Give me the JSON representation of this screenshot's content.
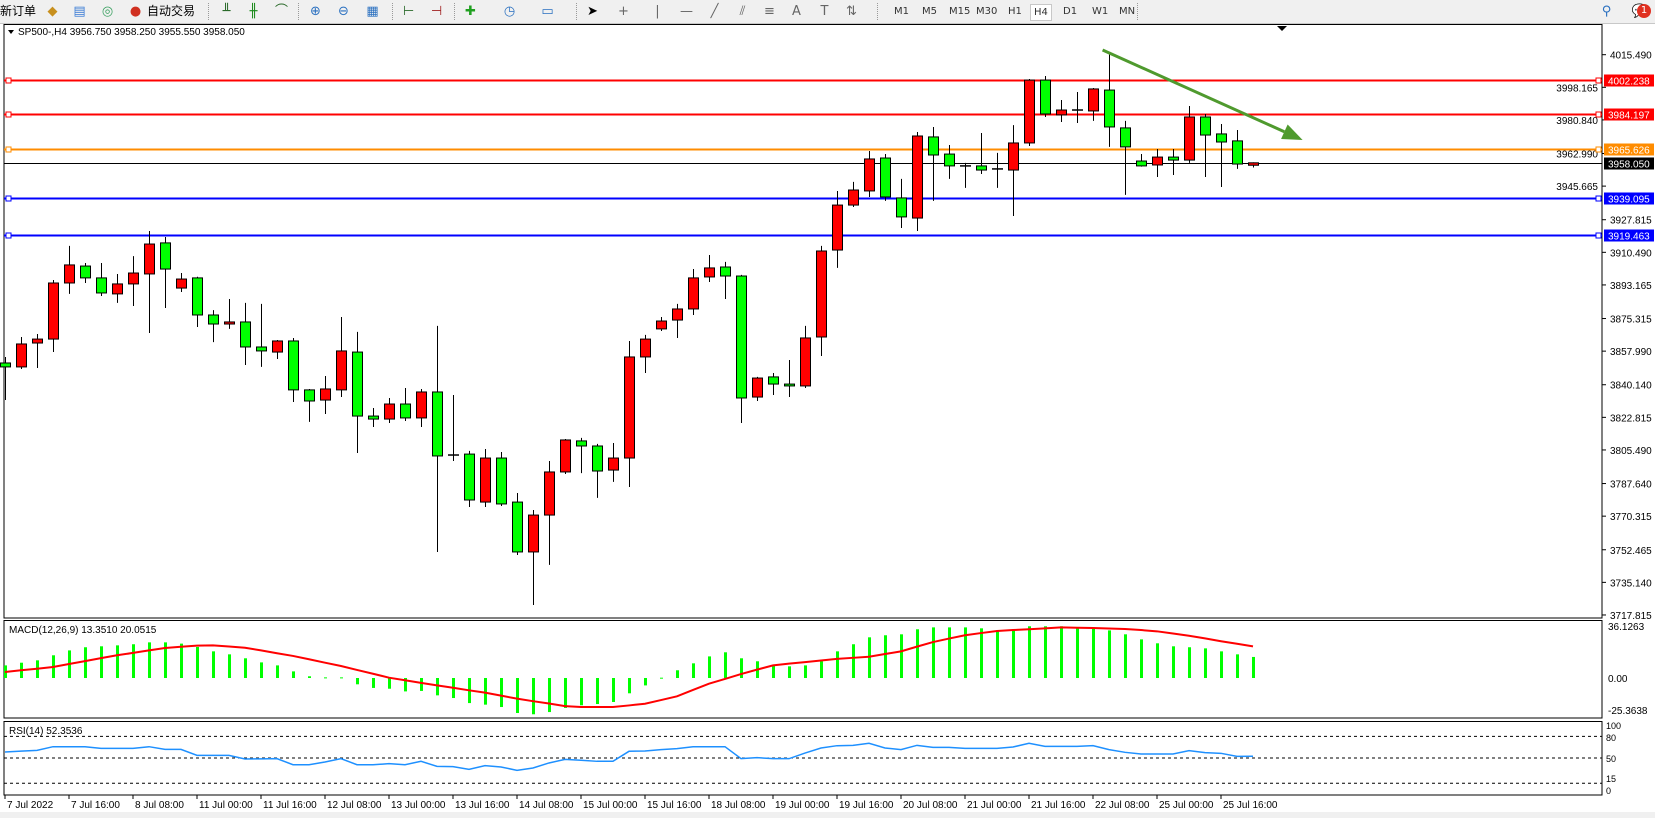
{
  "toolbar": {
    "new_order": "新订单",
    "auto_trading": "自动交易",
    "icons": [
      "market-watch-icon",
      "data-window-icon",
      "signals-icon",
      "auto-trading-icon",
      "bar-chart-icon",
      "candlestick-icon",
      "line-chart-icon",
      "zoom-in-icon",
      "zoom-out-icon",
      "tile-windows-icon",
      "chart-shift-icon",
      "autoscroll-icon",
      "indicators-icon",
      "periods-icon",
      "templates-icon",
      "cursor-icon",
      "crosshair-icon",
      "vertical-line-icon",
      "horizontal-line-icon",
      "trendline-icon",
      "fibonacci-icon",
      "fibo-fan-icon",
      "text-icon",
      "text-label-icon",
      "arrows-icon"
    ],
    "timeframes": [
      "M1",
      "M5",
      "M15",
      "M30",
      "H1",
      "H4",
      "D1",
      "W1",
      "MN"
    ],
    "active_timeframe": "H4",
    "notification_count": "1"
  },
  "chart": {
    "header": "SP500-,H4  3956.750 3958.250 3955.550 3958.050",
    "symbol": "SP500-",
    "timeframe": "H4",
    "colors": {
      "bull": "#ff0000",
      "bear": "#00ff00",
      "macd_hist": "#00ff00",
      "macd_signal": "#ff0000",
      "rsi": "#1e90ff",
      "trendline": "#4f9a2e"
    },
    "price_ticks": [
      "4015.490",
      "3998.165",
      "3980.840",
      "3962.990",
      "3945.665",
      "3927.815",
      "3910.490",
      "3893.165",
      "3875.315",
      "3857.990",
      "3840.140",
      "3822.815",
      "3805.490",
      "3787.640",
      "3770.315",
      "3752.465",
      "3735.140",
      "3717.815"
    ],
    "time_labels": [
      "7 Jul 2022",
      "7 Jul 16:00",
      "8 Jul 08:00",
      "11 Jul 00:00",
      "11 Jul 16:00",
      "12 Jul 08:00",
      "13 Jul 00:00",
      "13 Jul 16:00",
      "14 Jul 08:00",
      "15 Jul 00:00",
      "15 Jul 16:00",
      "18 Jul 08:00",
      "19 Jul 00:00",
      "19 Jul 16:00",
      "20 Jul 08:00",
      "21 Jul 00:00",
      "21 Jul 16:00",
      "22 Jul 08:00",
      "25 Jul 00:00",
      "25 Jul 16:00"
    ],
    "levels": [
      {
        "price": 4002.238,
        "label": "4002.238",
        "color": "#ff0000"
      },
      {
        "price": 3984.197,
        "label": "3984.197",
        "color": "#ff0000"
      },
      {
        "price": 3965.626,
        "label": "3965.626",
        "color": "#ff8c00"
      },
      {
        "price": 3939.095,
        "label": "3939.095",
        "color": "#0000ff"
      },
      {
        "price": 3919.463,
        "label": "3919.463",
        "color": "#0000ff"
      }
    ],
    "current_price": {
      "price": 3958.05,
      "label": "3958.050"
    },
    "trendline": {
      "from": {
        "bar": 68.6,
        "price": 4018.0
      },
      "to": {
        "bar": 81.1,
        "price": 3970.2
      }
    },
    "candles_ohlc": [
      [
        3851.7,
        3854.9,
        3832.0,
        3849.6
      ],
      [
        3849.6,
        3865.5,
        3848.5,
        3861.8
      ],
      [
        3862.3,
        3867.1,
        3849.0,
        3864.4
      ],
      [
        3864.4,
        3895.8,
        3857.5,
        3894.2
      ],
      [
        3894.2,
        3913.9,
        3888.4,
        3903.8
      ],
      [
        3903.2,
        3904.8,
        3894.2,
        3896.9
      ],
      [
        3896.9,
        3904.8,
        3887.3,
        3888.9
      ],
      [
        3888.4,
        3899.0,
        3883.6,
        3893.7
      ],
      [
        3893.7,
        3908.5,
        3882.0,
        3899.5
      ],
      [
        3899.0,
        3921.8,
        3867.6,
        3914.9
      ],
      [
        3915.5,
        3918.6,
        3880.9,
        3901.6
      ],
      [
        3891.5,
        3899.5,
        3889.4,
        3896.3
      ],
      [
        3896.9,
        3897.5,
        3870.8,
        3877.2
      ],
      [
        3877.2,
        3879.8,
        3862.8,
        3872.4
      ],
      [
        3872.4,
        3885.7,
        3869.8,
        3873.5
      ],
      [
        3873.5,
        3883.6,
        3850.6,
        3860.2
      ],
      [
        3860.2,
        3883.1,
        3849.6,
        3858.1
      ],
      [
        3857.5,
        3863.9,
        3853.8,
        3863.4
      ],
      [
        3863.4,
        3865.0,
        3831.0,
        3837.4
      ],
      [
        3837.4,
        3837.9,
        3820.4,
        3831.5
      ],
      [
        3832.0,
        3844.8,
        3824.6,
        3837.9
      ],
      [
        3837.4,
        3876.1,
        3833.6,
        3858.1
      ],
      [
        3857.5,
        3868.2,
        3803.9,
        3823.5
      ],
      [
        3823.5,
        3827.8,
        3817.7,
        3821.9
      ],
      [
        3821.9,
        3833.1,
        3819.8,
        3829.9
      ],
      [
        3829.9,
        3838.4,
        3820.9,
        3822.5
      ],
      [
        3822.5,
        3837.9,
        3817.7,
        3836.3
      ],
      [
        3836.3,
        3871.4,
        3751.3,
        3802.3
      ],
      [
        3802.8,
        3834.7,
        3799.6,
        3802.5
      ],
      [
        3803.3,
        3805.0,
        3775.2,
        3778.9
      ],
      [
        3777.8,
        3806.0,
        3775.2,
        3801.2
      ],
      [
        3801.2,
        3804.4,
        3775.7,
        3776.8
      ],
      [
        3777.8,
        3782.6,
        3749.7,
        3751.3
      ],
      [
        3751.3,
        3773.6,
        3723.1,
        3770.9
      ],
      [
        3770.9,
        3799.6,
        3744.4,
        3793.8
      ],
      [
        3793.8,
        3811.3,
        3792.7,
        3810.8
      ],
      [
        3810.3,
        3811.9,
        3793.2,
        3807.6
      ],
      [
        3807.6,
        3808.7,
        3780.0,
        3794.3
      ],
      [
        3794.8,
        3809.2,
        3788.5,
        3801.2
      ],
      [
        3801.2,
        3863.4,
        3785.8,
        3854.9
      ],
      [
        3854.9,
        3866.6,
        3846.4,
        3864.4
      ],
      [
        3869.8,
        3876.1,
        3868.7,
        3874.0
      ],
      [
        3874.5,
        3883.1,
        3865.0,
        3880.4
      ],
      [
        3880.4,
        3901.6,
        3877.2,
        3896.9
      ],
      [
        3897.4,
        3909.1,
        3894.7,
        3902.2
      ],
      [
        3902.7,
        3905.4,
        3885.7,
        3897.9
      ],
      [
        3897.9,
        3898.5,
        3819.8,
        3833.1
      ],
      [
        3833.6,
        3844.3,
        3831.5,
        3843.7
      ],
      [
        3844.3,
        3846.4,
        3834.7,
        3840.5
      ],
      [
        3840.5,
        3853.3,
        3833.6,
        3839.5
      ],
      [
        3839.5,
        3871.4,
        3838.4,
        3865.0
      ],
      [
        3865.5,
        3913.9,
        3855.4,
        3911.2
      ],
      [
        3911.7,
        3943.1,
        3902.2,
        3935.6
      ],
      [
        3935.6,
        3947.9,
        3934.6,
        3943.6
      ],
      [
        3943.1,
        3964.3,
        3939.9,
        3960.1
      ],
      [
        3960.6,
        3962.7,
        3937.8,
        3939.9
      ],
      [
        3939.4,
        3949.5,
        3923.4,
        3929.3
      ],
      [
        3928.7,
        3974.4,
        3921.8,
        3972.3
      ],
      [
        3971.8,
        3977.1,
        3937.8,
        3962.2
      ],
      [
        3962.7,
        3967.5,
        3949.5,
        3956.4
      ],
      [
        3956.4,
        3958.0,
        3944.7,
        3955.8
      ],
      [
        3956.4,
        3973.9,
        3952.1,
        3954.2
      ],
      [
        3954.8,
        3963.3,
        3944.7,
        3954.6
      ],
      [
        3954.2,
        3978.1,
        3929.8,
        3968.6
      ],
      [
        3968.6,
        4002.6,
        3967.0,
        4002.0
      ],
      [
        4002.0,
        4004.2,
        3982.4,
        3984.0
      ],
      [
        3983.5,
        3991.4,
        3979.7,
        3986.1
      ],
      [
        3986.1,
        3995.7,
        3979.2,
        3985.6
      ],
      [
        3985.6,
        3997.8,
        3980.3,
        3997.3
      ],
      [
        3996.7,
        4016.4,
        3966.5,
        3977.1
      ],
      [
        3976.6,
        3980.3,
        3941.0,
        3966.5
      ],
      [
        3959.0,
        3962.7,
        3956.0,
        3956.4
      ],
      [
        3956.9,
        3965.4,
        3950.5,
        3961.1
      ],
      [
        3961.1,
        3965.4,
        3951.6,
        3959.5
      ],
      [
        3959.5,
        3988.2,
        3958.0,
        3982.4
      ],
      [
        3982.4,
        3984.0,
        3950.5,
        3972.8
      ],
      [
        3973.4,
        3978.7,
        3945.2,
        3969.1
      ],
      [
        3969.7,
        3975.5,
        3954.8,
        3957.4
      ],
      [
        3956.75,
        3958.25,
        3955.55,
        3958.05
      ]
    ]
  },
  "macd": {
    "label": "MACD(12,26,9) 13.3510 20.0515",
    "axis_ticks": [
      "36.1263",
      "0.00",
      "-25.3638"
    ],
    "range": [
      -25.3638,
      36.1263
    ],
    "histogram": [
      8.0,
      9.7,
      11.2,
      14.4,
      17.5,
      19.5,
      20.1,
      20.7,
      21.4,
      22.6,
      22.6,
      21.8,
      19.7,
      16.9,
      15.0,
      12.5,
      9.9,
      8.0,
      4.2,
      1.1,
      0.4,
      0.4,
      -4.0,
      -6.3,
      -6.8,
      -8.5,
      -8.2,
      -11.0,
      -12.7,
      -15.9,
      -16.9,
      -18.4,
      -22.2,
      -23.0,
      -21.6,
      -19.0,
      -17.3,
      -16.5,
      -15.2,
      -9.7,
      -4.7,
      0.2,
      4.9,
      9.3,
      13.7,
      16.3,
      12.5,
      10.6,
      8.0,
      7.4,
      8.0,
      10.6,
      16.9,
      21.4,
      25.8,
      27.1,
      27.7,
      30.9,
      32.1,
      32.1,
      32.1,
      31.5,
      30.2,
      30.9,
      32.8,
      32.8,
      32.8,
      32.1,
      31.5,
      30.2,
      27.7,
      24.5,
      22.0,
      20.1,
      19.5,
      18.8,
      16.9,
      15.0,
      13.351
    ],
    "signal": [
      3.8,
      4.9,
      5.9,
      7.0,
      8.9,
      10.7,
      12.6,
      14.4,
      15.9,
      17.5,
      19.0,
      19.8,
      20.5,
      20.7,
      20.0,
      19.2,
      17.5,
      15.7,
      14.0,
      11.9,
      9.7,
      7.6,
      5.1,
      2.7,
      0.2,
      -1.4,
      -3.1,
      -4.7,
      -6.2,
      -7.8,
      -9.3,
      -11.2,
      -13.1,
      -14.7,
      -16.2,
      -17.8,
      -18.4,
      -18.4,
      -18.4,
      -17.4,
      -16.3,
      -14.0,
      -11.6,
      -7.6,
      -3.6,
      -0.6,
      2.5,
      5.3,
      8.0,
      9.1,
      10.1,
      11.1,
      12.1,
      12.8,
      13.5,
      15.2,
      16.9,
      19.9,
      22.8,
      25.0,
      27.1,
      28.5,
      29.8,
      30.4,
      30.9,
      31.5,
      32.1,
      31.9,
      31.7,
      31.4,
      31.1,
      30.4,
      29.6,
      28.2,
      26.8,
      25.1,
      23.3,
      21.7,
      20.0515
    ]
  },
  "rsi": {
    "label": "RSI(14) 52.3536",
    "axis_ticks": [
      "100",
      "80",
      "50",
      "15",
      "0"
    ],
    "levels": [
      80,
      50,
      15
    ],
    "values": [
      58.3,
      59.5,
      60.6,
      65.7,
      65.7,
      65.7,
      63.4,
      63.4,
      63.4,
      65.7,
      62.0,
      62.0,
      53.7,
      53.7,
      53.7,
      48.6,
      48.8,
      49.1,
      40.7,
      40.7,
      44.4,
      49.1,
      40.7,
      40.7,
      42.1,
      40.7,
      45.4,
      38.4,
      38.0,
      34.3,
      39.4,
      37.5,
      32.9,
      36.1,
      43.1,
      48.1,
      46.8,
      45.4,
      45.4,
      59.3,
      59.8,
      61.6,
      63.0,
      65.7,
      65.7,
      65.7,
      49.1,
      50.5,
      49.1,
      49.1,
      56.9,
      63.9,
      67.1,
      67.6,
      70.4,
      63.9,
      61.6,
      67.6,
      64.8,
      64.8,
      63.4,
      63.4,
      63.4,
      65.3,
      70.4,
      66.2,
      66.2,
      66.2,
      67.1,
      61.6,
      57.9,
      55.6,
      55.6,
      55.6,
      60.2,
      57.4,
      56.5,
      52.3,
      52.3536
    ]
  }
}
